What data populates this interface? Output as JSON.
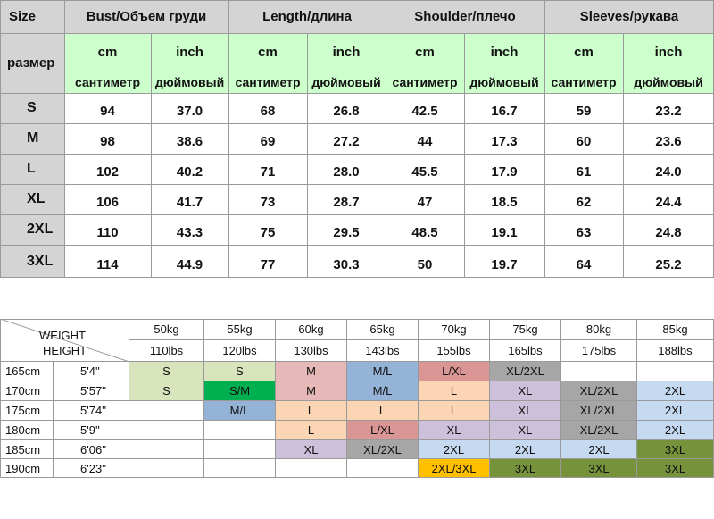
{
  "size_table": {
    "corner_top": "Size",
    "corner_bottom": "размер",
    "groups": [
      "Bust/Объем груди",
      "Length/длина",
      "Shoulder/плечо",
      "Sleeves/рукава"
    ],
    "unit_en": [
      "cm",
      "inch",
      "cm",
      "inch",
      "cm",
      "inch",
      "cm",
      "inch"
    ],
    "unit_ru": [
      "сантиметр",
      "дюймовый",
      "сантиметр",
      "дюймовый",
      "сантиметр",
      "дюймовый",
      "сантиметр",
      "дюймовый"
    ],
    "rows": [
      {
        "size": "S",
        "values": [
          "94",
          "37.0",
          "68",
          "26.8",
          "42.5",
          "16.7",
          "59",
          "23.2"
        ]
      },
      {
        "size": "M",
        "values": [
          "98",
          "38.6",
          "69",
          "27.2",
          "44",
          "17.3",
          "60",
          "23.6"
        ]
      },
      {
        "size": "L",
        "values": [
          "102",
          "40.2",
          "71",
          "28.0",
          "45.5",
          "17.9",
          "61",
          "24.0"
        ]
      },
      {
        "size": "XL",
        "values": [
          "106",
          "41.7",
          "73",
          "28.7",
          "47",
          "18.5",
          "62",
          "24.4"
        ]
      },
      {
        "size": "2XL",
        "values": [
          "110",
          "43.3",
          "75",
          "29.5",
          "48.5",
          "19.1",
          "63",
          "24.8"
        ]
      },
      {
        "size": "3XL",
        "values": [
          "114",
          "44.9",
          "77",
          "30.3",
          "50",
          "19.7",
          "64",
          "25.2"
        ]
      }
    ]
  },
  "weight_chart": {
    "weight_label": "WEIGHT",
    "height_label": "HEIGHT",
    "weights_kg": [
      "50kg",
      "55kg",
      "60kg",
      "65kg",
      "70kg",
      "75kg",
      "80kg",
      "85kg"
    ],
    "weights_lbs": [
      "110lbs",
      "120lbs",
      "130lbs",
      "143lbs",
      "155lbs",
      "165lbs",
      "175lbs",
      "188lbs"
    ],
    "rows": [
      {
        "cm": "165cm",
        "ft": "5'4''",
        "cells": [
          "S",
          "S",
          "M",
          "M/L",
          "L/XL",
          "XL/2XL",
          "",
          ""
        ]
      },
      {
        "cm": "170cm",
        "ft": "5'57''",
        "cells": [
          "S",
          "S/M",
          "M",
          "M/L",
          "L",
          "XL",
          "XL/2XL",
          "2XL"
        ]
      },
      {
        "cm": "175cm",
        "ft": "5'74''",
        "cells": [
          "",
          "M/L",
          "L",
          "L",
          "L",
          "XL",
          "XL/2XL",
          "2XL"
        ]
      },
      {
        "cm": "180cm",
        "ft": "5'9''",
        "cells": [
          "",
          "",
          "L",
          "L/XL",
          "XL",
          "XL",
          "XL/2XL",
          "2XL"
        ]
      },
      {
        "cm": "185cm",
        "ft": "6'06''",
        "cells": [
          "",
          "",
          "XL",
          "XL/2XL",
          "2XL",
          "2XL",
          "2XL",
          "3XL"
        ]
      },
      {
        "cm": "190cm",
        "ft": "6'23''",
        "cells": [
          "",
          "",
          "",
          "",
          "2XL/3XL",
          "3XL",
          "3XL",
          "3XL"
        ]
      }
    ],
    "size_colors": {
      "S": "#d8e4bc",
      "S/M": "#00b050",
      "M": "#e6b8b7",
      "M/L": "#95b3d7",
      "L/XL": "#da9694",
      "XL/2XL": "#a6a6a6",
      "L": "#fcd5b4",
      "XL": "#ccc0da",
      "2XL": "#c5d9f1",
      "3XL": "#76933c",
      "2XL/3XL": "#ffc000"
    }
  }
}
